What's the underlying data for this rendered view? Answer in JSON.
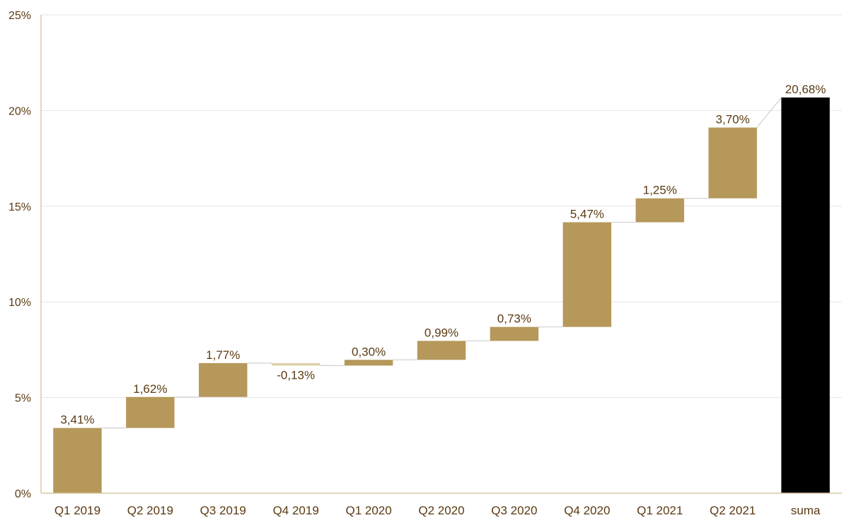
{
  "chart_data": {
    "type": "bar",
    "subtype": "waterfall",
    "title": "",
    "xlabel": "",
    "ylabel": "",
    "categories": [
      "Q1 2019",
      "Q2 2019",
      "Q3 2019",
      "Q4 2019",
      "Q1 2020",
      "Q2 2020",
      "Q3 2020",
      "Q4 2020",
      "Q1 2021",
      "Q2 2021",
      "suma"
    ],
    "values": [
      3.41,
      1.62,
      1.77,
      -0.13,
      0.3,
      0.99,
      0.73,
      5.47,
      1.25,
      3.7,
      20.68
    ],
    "data_labels": [
      "3,41%",
      "1,62%",
      "1,77%",
      "-0,13%",
      "0,30%",
      "0,99%",
      "0,73%",
      "5,47%",
      "1,25%",
      "3,70%",
      "20,68%"
    ],
    "total_index": 10,
    "ylim": [
      0,
      25
    ],
    "yticks": [
      0,
      5,
      10,
      15,
      20,
      25
    ],
    "ytick_labels": [
      "0%",
      "5%",
      "10%",
      "15%",
      "20%",
      "25%"
    ],
    "grid": true,
    "legend": "none",
    "colors": {
      "increase": "#b5985a",
      "decrease": "#dccfa8",
      "total": "#000000",
      "connector": "#d0d0d0",
      "grid": "#e6e6e6",
      "axis": "#d9c9a0",
      "text": "#5a3a12"
    }
  }
}
